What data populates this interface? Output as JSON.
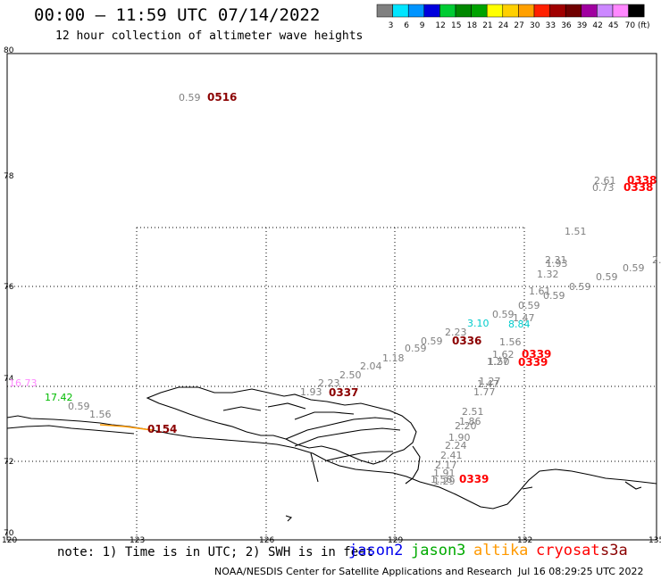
{
  "header": {
    "title": "00:00 – 11:59 UTC 07/14/2022",
    "subtitle": "12 hour collection of altimeter wave heights"
  },
  "color_scale": {
    "values": [
      "3",
      "6",
      "9",
      "12",
      "15",
      "18",
      "21",
      "24",
      "27",
      "30",
      "33",
      "36",
      "39",
      "42",
      "45",
      "70 (ft)"
    ],
    "colors": [
      "#808080",
      "#00e5ff",
      "#0094ff",
      "#0000dd",
      "#00cc33",
      "#008800",
      "#00a300",
      "#ffff00",
      "#ffd000",
      "#ffa000",
      "#ff2000",
      "#a00000",
      "#700000",
      "#a000a0",
      "#cc88ff",
      "#ff88ff",
      "#000000"
    ]
  },
  "axes": {
    "lat_labels": [
      "80",
      "78",
      "76",
      "74",
      "72",
      "70"
    ],
    "lon_labels": [
      "120",
      "123",
      "126",
      "129",
      "132",
      "135"
    ]
  },
  "observations": [
    {
      "text": "0.59",
      "color": "#808080"
    },
    {
      "text": "0516",
      "color": "#8b0000"
    },
    {
      "text": "2.61",
      "color": "#808080"
    },
    {
      "text": "0.73",
      "color": "#808080"
    },
    {
      "text": "0338",
      "color": "#ff0000"
    },
    {
      "text": "0338",
      "color": "#ff0000"
    },
    {
      "text": "1.51",
      "color": "#808080"
    },
    {
      "text": "2.31",
      "color": "#808080"
    },
    {
      "text": "1.93",
      "color": "#808080"
    },
    {
      "text": "1.32",
      "color": "#808080"
    },
    {
      "text": "0.59",
      "color": "#808080"
    },
    {
      "text": "2.",
      "color": "#808080"
    },
    {
      "text": "1.61",
      "color": "#808080"
    },
    {
      "text": "0.59",
      "color": "#808080"
    },
    {
      "text": "0.59",
      "color": "#808080"
    },
    {
      "text": "0.59",
      "color": "#808080"
    },
    {
      "text": "0.59",
      "color": "#808080"
    },
    {
      "text": "0.59",
      "color": "#808080"
    },
    {
      "text": "1.47",
      "color": "#808080"
    },
    {
      "text": "3.10",
      "color": "#00cccc"
    },
    {
      "text": "8.84",
      "color": "#00cccc"
    },
    {
      "text": "2.23",
      "color": "#808080"
    },
    {
      "text": "0336",
      "color": "#8b0000"
    },
    {
      "text": "0.59",
      "color": "#808080"
    },
    {
      "text": "0.59",
      "color": "#808080"
    },
    {
      "text": "1.56",
      "color": "#808080"
    },
    {
      "text": "1.18",
      "color": "#808080"
    },
    {
      "text": "1.62",
      "color": "#808080"
    },
    {
      "text": "0339",
      "color": "#ff0000"
    },
    {
      "text": "1.27",
      "color": "#808080"
    },
    {
      "text": "1.50",
      "color": "#808080"
    },
    {
      "text": "0339",
      "color": "#ff0000"
    },
    {
      "text": "2.04",
      "color": "#808080"
    },
    {
      "text": "2.50",
      "color": "#808080"
    },
    {
      "text": "1.27",
      "color": "#808080"
    },
    {
      "text": "2.23",
      "color": "#808080"
    },
    {
      "text": "1.47",
      "color": "#808080"
    },
    {
      "text": "1.93",
      "color": "#808080"
    },
    {
      "text": "0337",
      "color": "#8b0000"
    },
    {
      "text": "1.77",
      "color": "#808080"
    },
    {
      "text": "16.73",
      "color": "#ff88ff"
    },
    {
      "text": "17.42",
      "color": "#00bb00"
    },
    {
      "text": "0.59",
      "color": "#808080"
    },
    {
      "text": "2.51",
      "color": "#808080"
    },
    {
      "text": "1.56",
      "color": "#808080"
    },
    {
      "text": "1.86",
      "color": "#808080"
    },
    {
      "text": "2.20",
      "color": "#808080"
    },
    {
      "text": "0154",
      "color": "#8b0000"
    },
    {
      "text": "1.90",
      "color": "#808080"
    },
    {
      "text": "2.24",
      "color": "#808080"
    },
    {
      "text": "2.41",
      "color": "#808080"
    },
    {
      "text": "2.17",
      "color": "#808080"
    },
    {
      "text": "1.91",
      "color": "#808080"
    },
    {
      "text": "1.58",
      "color": "#808080"
    },
    {
      "text": "1.29",
      "color": "#808080"
    },
    {
      "text": "0339",
      "color": "#ff0000"
    }
  ],
  "footer": {
    "note": "note: 1) Time is in UTC; 2) SWH is in feet",
    "satellites": [
      {
        "name": "jason2",
        "color": "#0000ee"
      },
      {
        "name": "jason3",
        "color": "#00aa00"
      },
      {
        "name": "altika",
        "color": "#ff9900"
      },
      {
        "name": "cryosat",
        "color": "#ff0000"
      },
      {
        "name": "s3a",
        "color": "#8b0000"
      }
    ],
    "credit": "NOAA/NESDIS Center for Satellite Applications and Research",
    "timestamp": "Jul 16 08:29:25 UTC 2022"
  }
}
